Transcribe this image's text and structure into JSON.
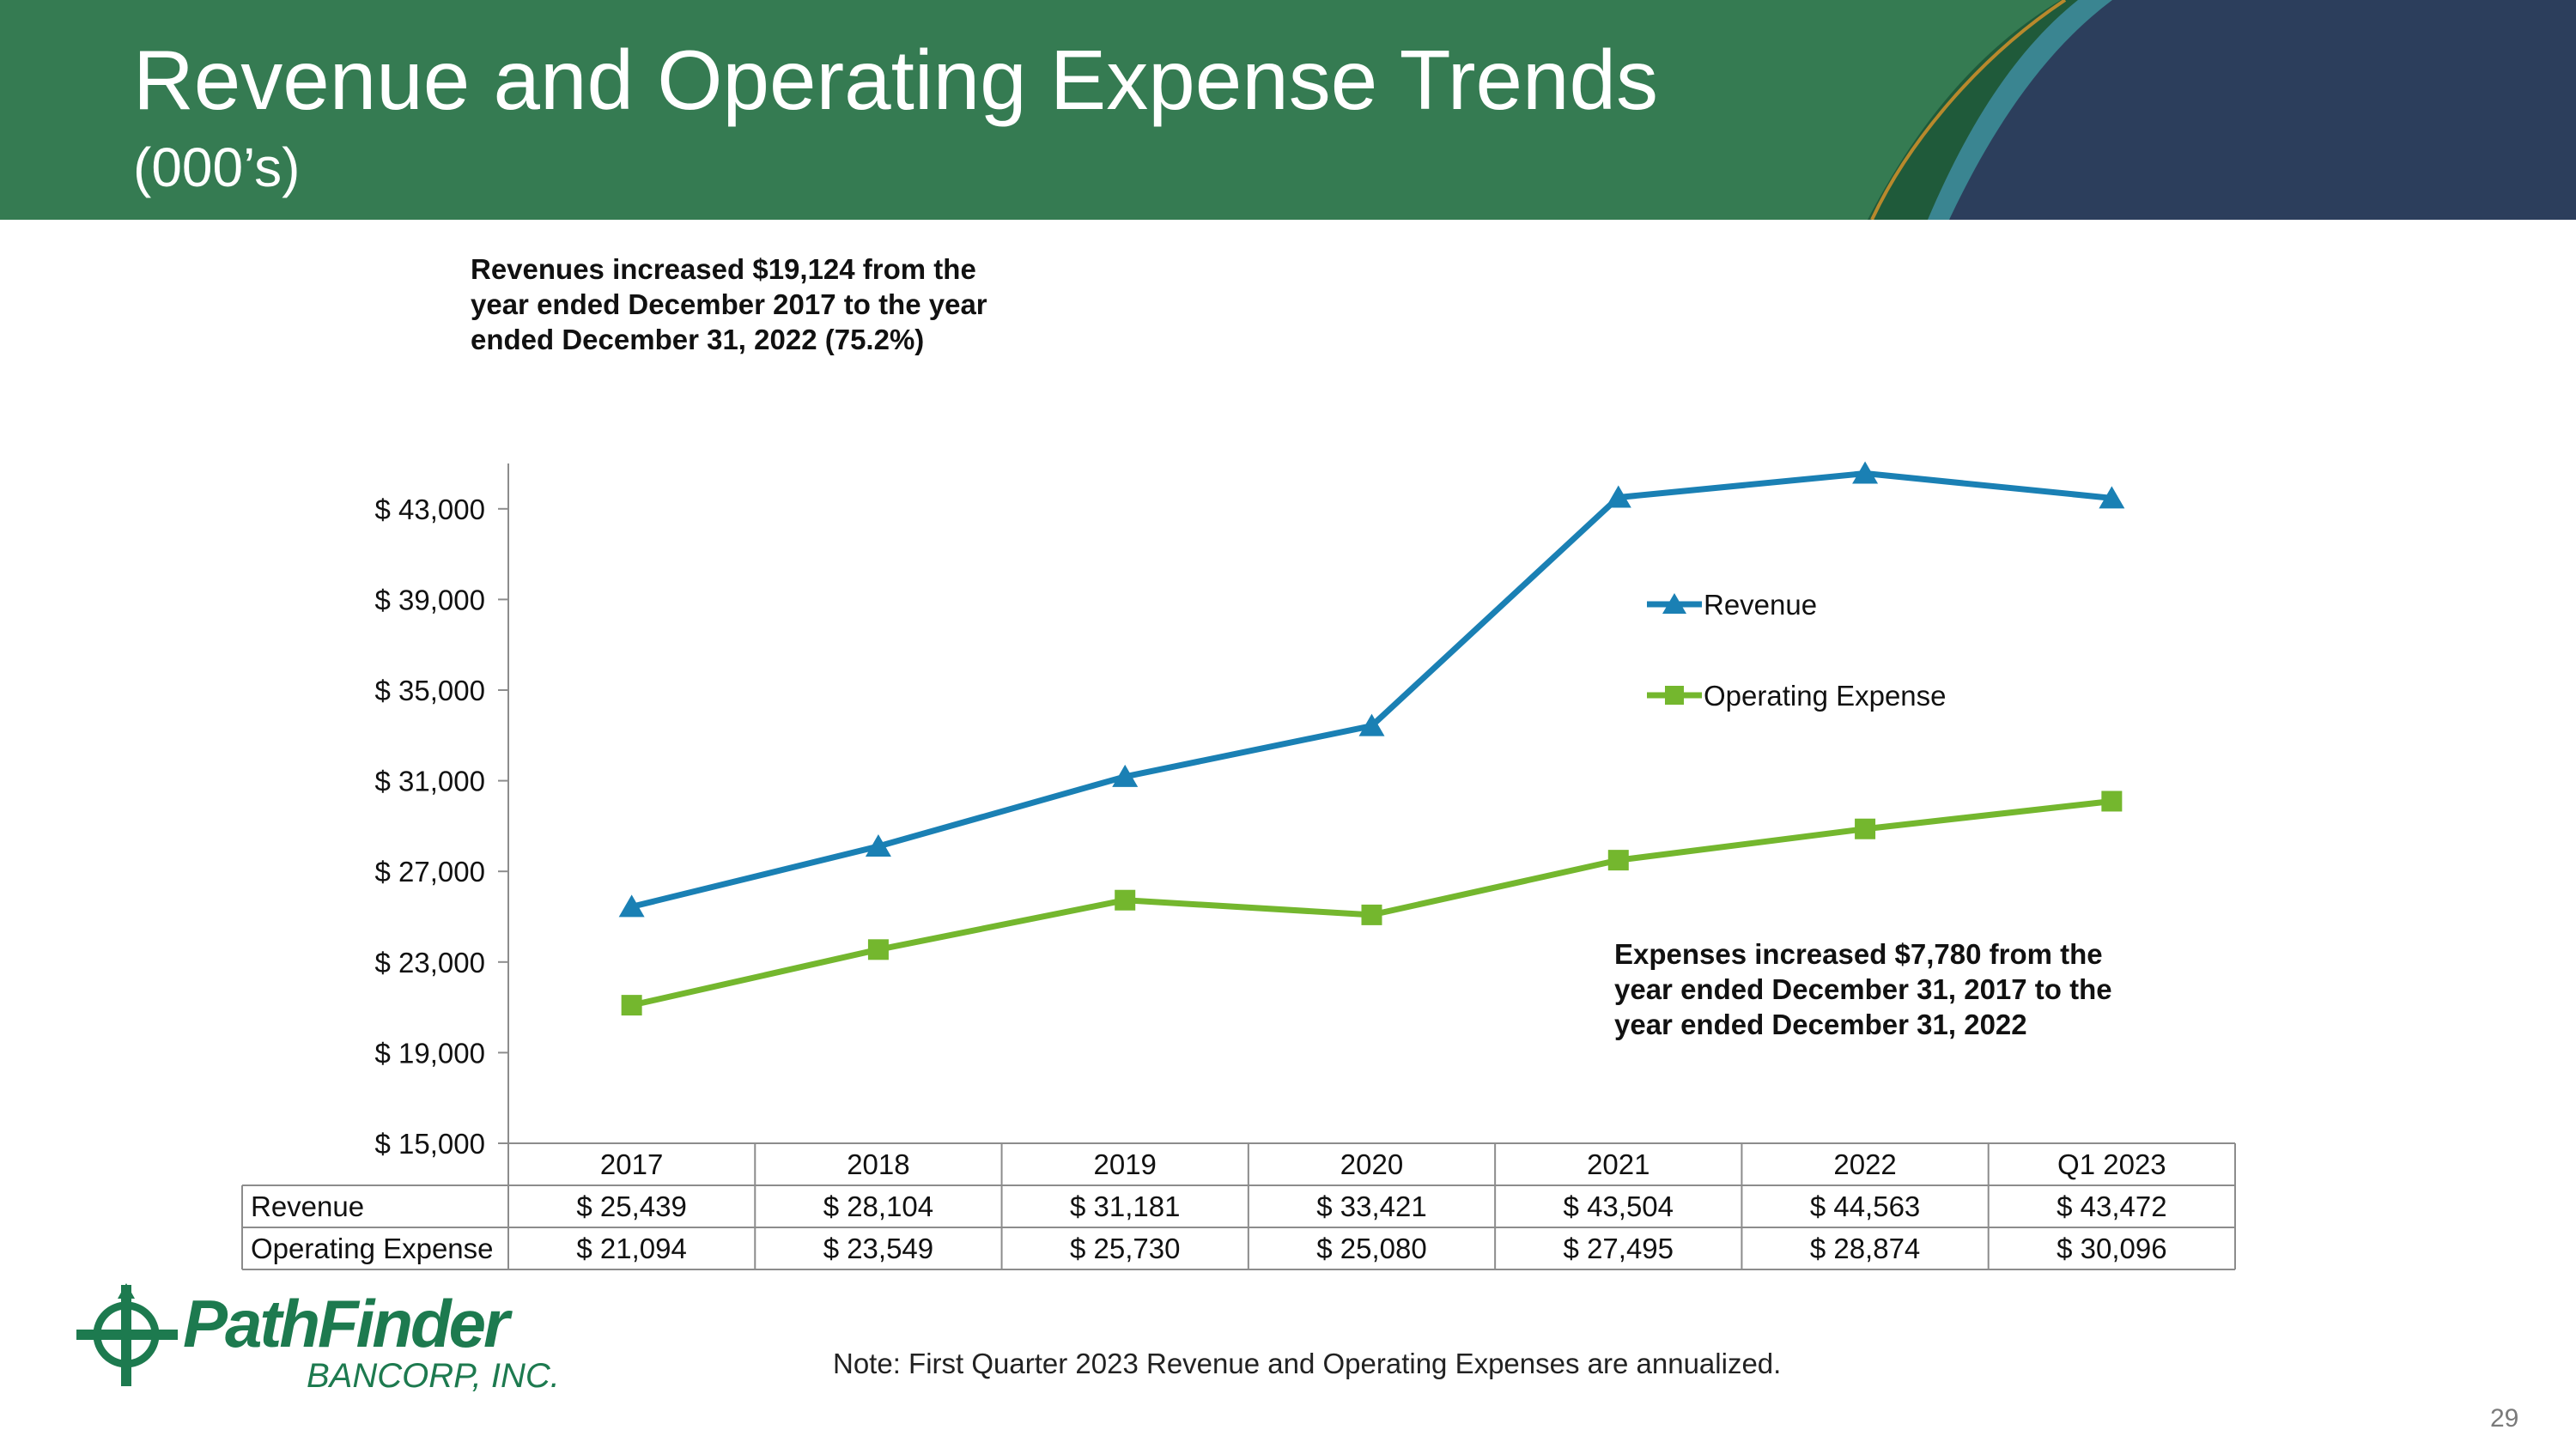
{
  "header": {
    "title": "Revenue and Operating Expense Trends",
    "subtitle": "(000’s)"
  },
  "callouts": {
    "revenue": "Revenues increased $19,124 from the\nyear ended December 2017 to the year\nended December 31, 2022 (75.2%)",
    "expense": "Expenses increased $7,780 from the\nyear ended December 31, 2017 to the\nyear ended December 31, 2022"
  },
  "note": "Note: First Quarter 2023 Revenue and Operating Expenses are annualized.",
  "page_number": "29",
  "logo": {
    "name": "PathFinder",
    "sub": "BANCORP, INC."
  },
  "colors": {
    "header_green": "#357b52",
    "header_navy": "#2c3e5c",
    "revenue": "#1a80b4",
    "expense": "#74b72e"
  },
  "chart_data": {
    "type": "line",
    "categories": [
      "2017",
      "2018",
      "2019",
      "2020",
      "2021",
      "2022",
      "Q1 2023"
    ],
    "series": [
      {
        "name": "Revenue",
        "marker": "triangle",
        "color": "#1a80b4",
        "values": [
          25439,
          28104,
          31181,
          33421,
          43504,
          44563,
          43472
        ],
        "labels": [
          "$ 25,439",
          "$ 28,104",
          "$ 31,181",
          "$ 33,421",
          "$ 43,504",
          "$ 44,563",
          "$ 43,472"
        ]
      },
      {
        "name": "Operating Expense",
        "marker": "square",
        "color": "#74b72e",
        "values": [
          21094,
          23549,
          25730,
          25080,
          27495,
          28874,
          30096
        ],
        "labels": [
          "$ 21,094",
          "$ 23,549",
          "$ 25,730",
          "$ 25,080",
          "$ 27,495",
          "$ 28,874",
          "$ 30,096"
        ]
      }
    ],
    "yticks": [
      15000,
      19000,
      23000,
      27000,
      31000,
      35000,
      39000,
      43000
    ],
    "ytick_labels": [
      "$ 15,000",
      "$ 19,000",
      "$ 23,000",
      "$ 27,000",
      "$ 31,000",
      "$ 35,000",
      "$ 39,000",
      "$ 43,000"
    ],
    "ylim": [
      15000,
      45000
    ],
    "grid": false,
    "legend_position": "right",
    "data_table": true
  }
}
